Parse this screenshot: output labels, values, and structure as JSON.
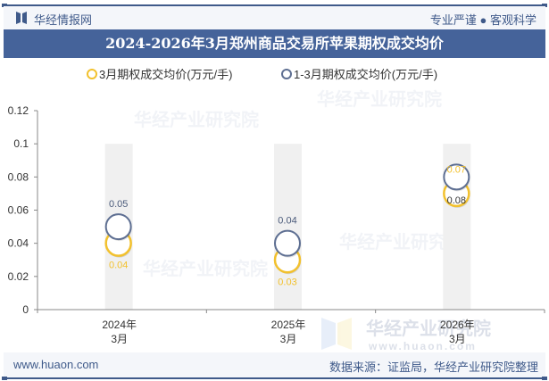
{
  "header": {
    "brand": "华经情报网",
    "slogan": "专业严谨 ● 客观科学",
    "title": "2024-2026年3月郑州商品交易所苹果期权成交均价"
  },
  "legend": [
    {
      "label": "3月期权成交均价(万元/手)",
      "color": "#f2c12e"
    },
    {
      "label": "1-3月期权成交均价(万元/手)",
      "color": "#5e6f92"
    }
  ],
  "footer": {
    "site": "www.huaon.com",
    "source": "数据来源：证监局，华经产业研究院整理"
  },
  "watermark": {
    "text": "华经产业研究院",
    "url": "www.huaon.com"
  },
  "chart_data": {
    "type": "scatter",
    "title": "2024-2026年3月郑州商品交易所苹果期权成交均价",
    "categories": [
      "2024年\n3月",
      "2025年\n3月",
      "2026年\n3月"
    ],
    "category_lines": [
      [
        "2024年",
        "3月"
      ],
      [
        "2025年",
        "3月"
      ],
      [
        "2026年",
        "3月"
      ]
    ],
    "series": [
      {
        "name": "3月期权成交均价(万元/手)",
        "color": "#f2c12e",
        "values": [
          0.04,
          0.03,
          0.07
        ]
      },
      {
        "name": "1-3月期权成交均价(万元/手)",
        "color": "#5e6f92",
        "values": [
          0.05,
          0.04,
          0.08
        ]
      }
    ],
    "y_ticks": [
      "0",
      "0.02",
      "0.04",
      "0.06",
      "0.08",
      "0.1",
      "0.12"
    ],
    "ylim": [
      0,
      0.12
    ],
    "xlabel": "",
    "ylabel": "",
    "grid": false,
    "legend_position": "top",
    "band_color": "#f0f0f0"
  }
}
